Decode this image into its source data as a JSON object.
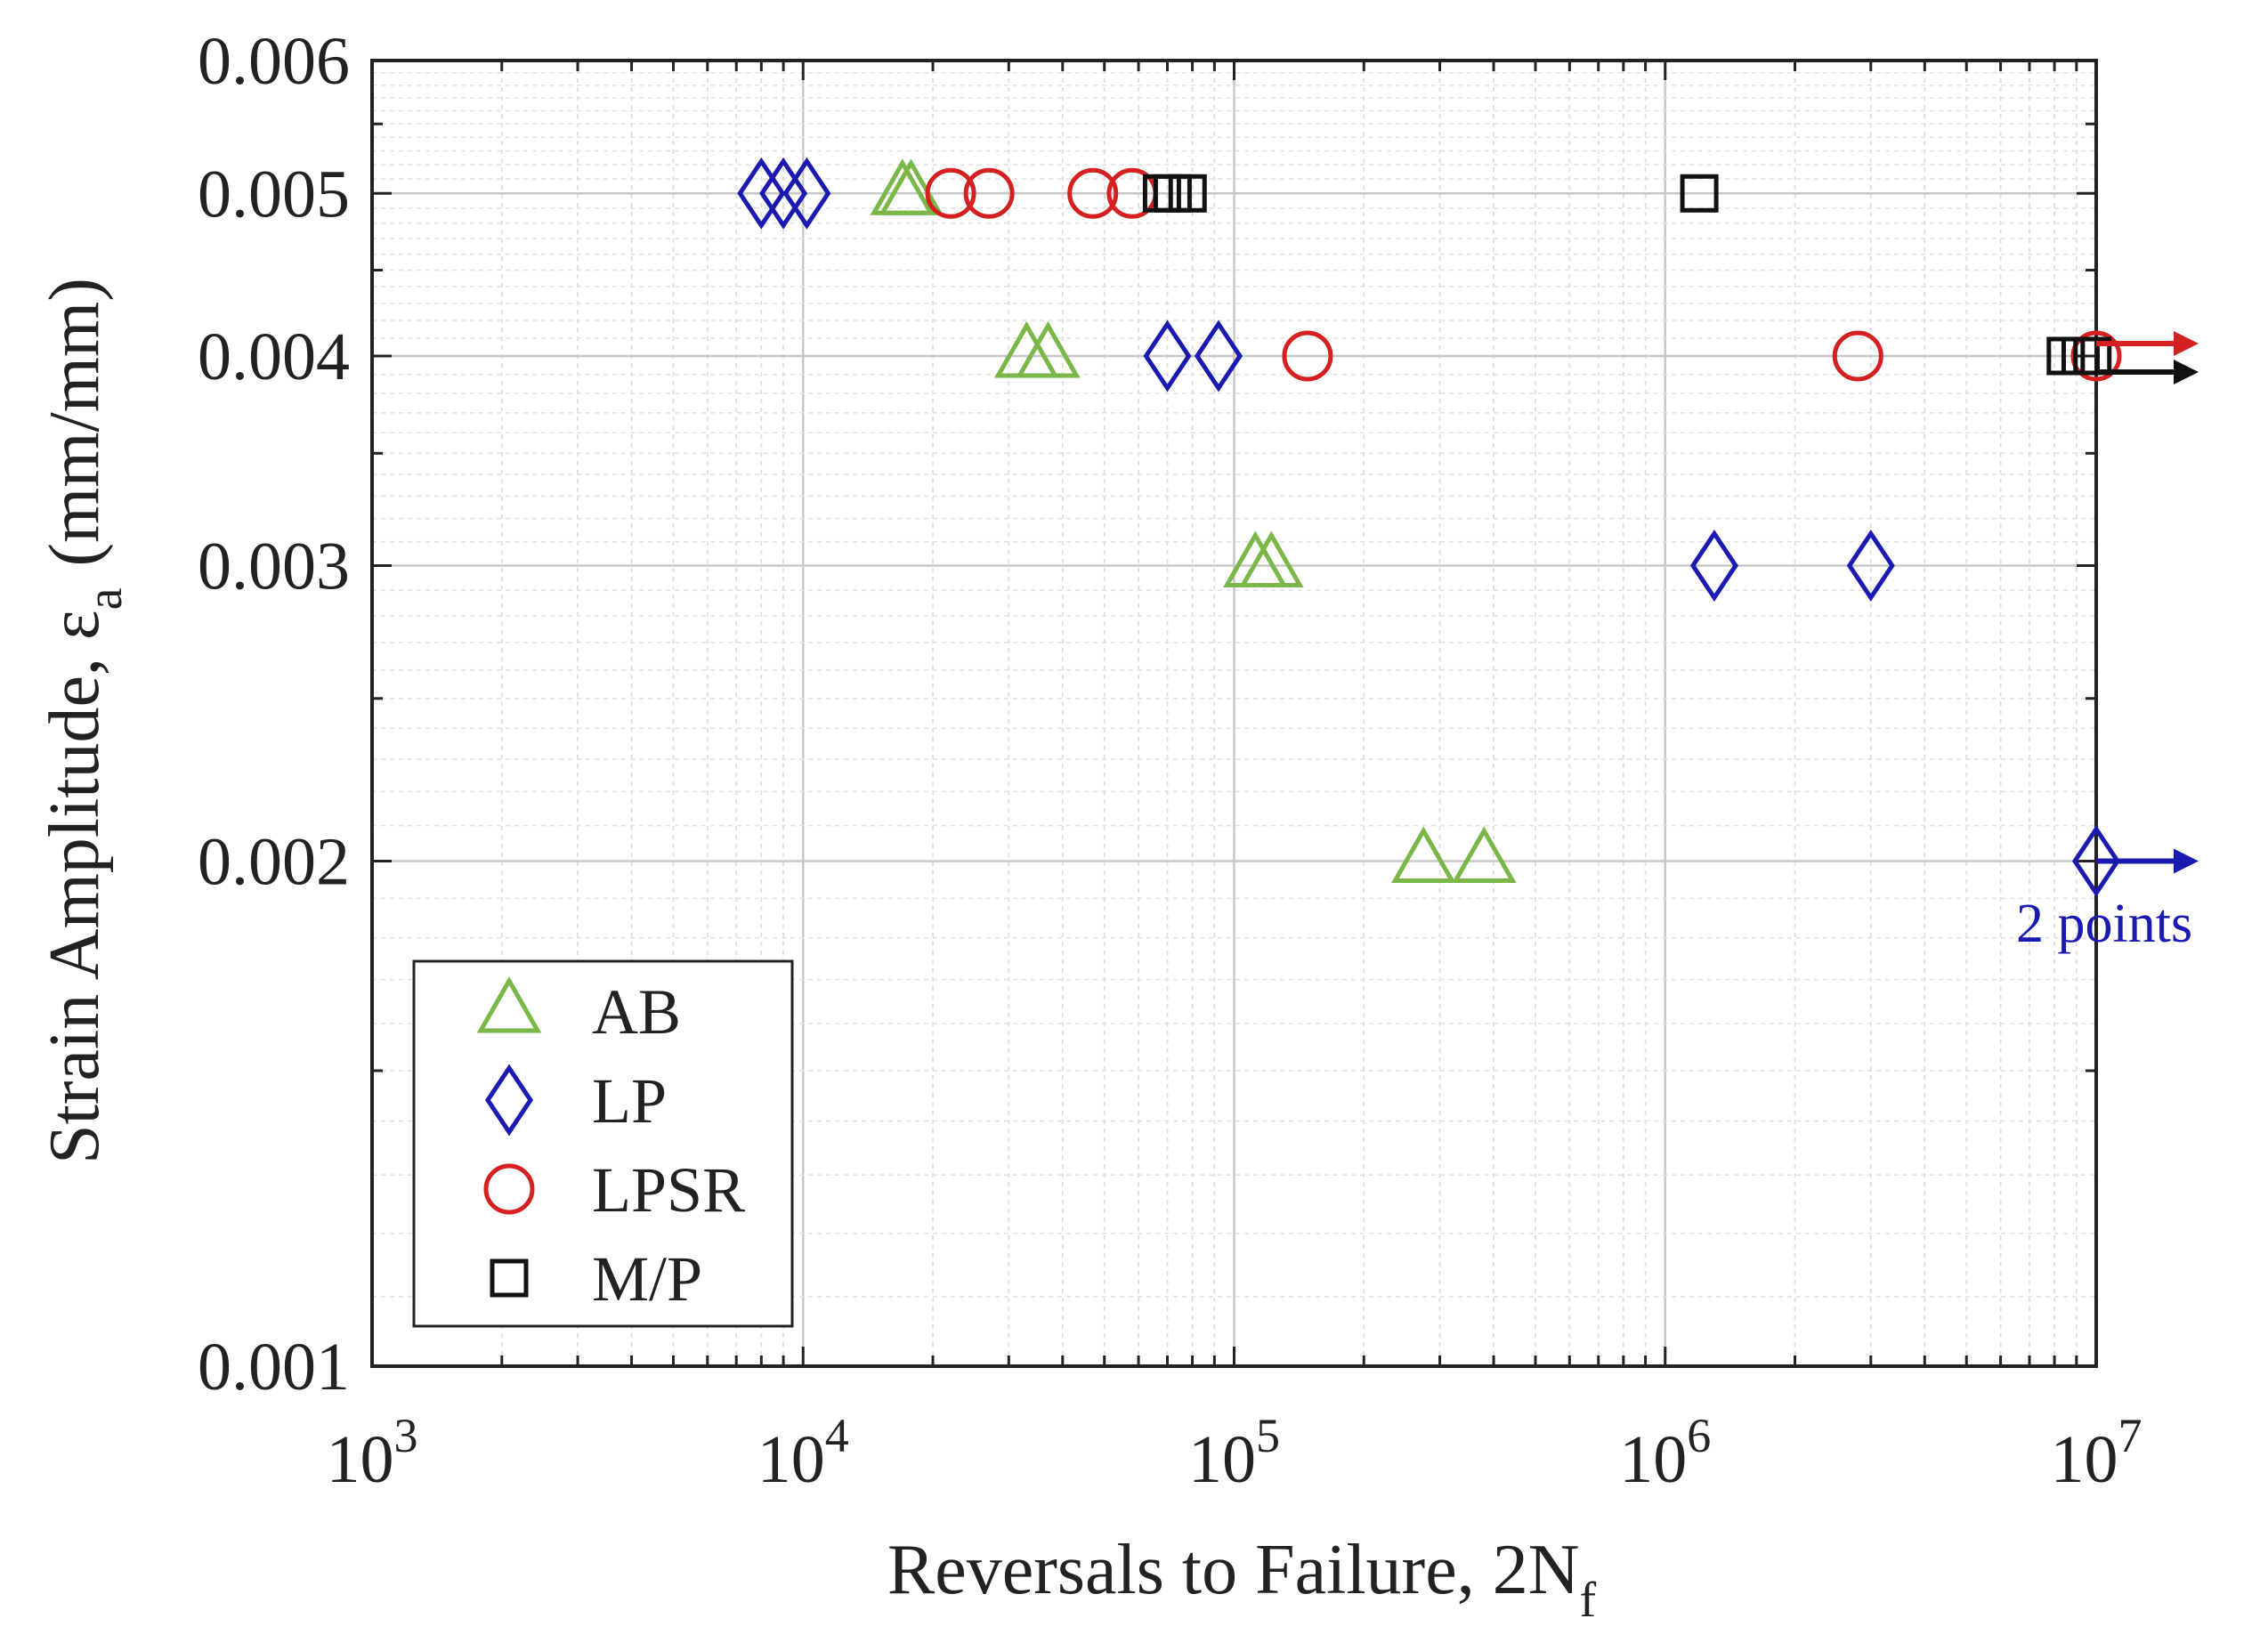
{
  "chart_data": {
    "type": "scatter",
    "x_scale": "log",
    "y_scale": "log",
    "xlim": [
      1000,
      10000000
    ],
    "ylim": [
      0.001,
      0.006
    ],
    "grid": true,
    "legend_position": "bottom-left",
    "xlabel": {
      "main": "Reversals to Failure, 2N",
      "sub": "f"
    },
    "ylabel": {
      "main": "Strain Amplitude, ε",
      "sub": "a",
      "unit": "(mm/mm)"
    },
    "x_tick_labels": [
      {
        "value": 1000,
        "base": "10",
        "exp": "3"
      },
      {
        "value": 10000,
        "base": "10",
        "exp": "4"
      },
      {
        "value": 100000,
        "base": "10",
        "exp": "5"
      },
      {
        "value": 1000000,
        "base": "10",
        "exp": "6"
      },
      {
        "value": 10000000,
        "base": "10",
        "exp": "7"
      }
    ],
    "y_tick_labels": [
      {
        "value": 0.006,
        "label": "0.006"
      },
      {
        "value": 0.005,
        "label": "0.005"
      },
      {
        "value": 0.004,
        "label": "0.004"
      },
      {
        "value": 0.003,
        "label": "0.003"
      },
      {
        "value": 0.002,
        "label": "0.002"
      },
      {
        "value": 0.001,
        "label": "0.001"
      }
    ],
    "series": [
      {
        "name": "AB",
        "marker": "triangle",
        "color": "#7ab648",
        "points": [
          [
            17000,
            0.005
          ],
          [
            17800,
            0.005
          ],
          [
            33000,
            0.004
          ],
          [
            37000,
            0.004
          ],
          [
            112000,
            0.003
          ],
          [
            122000,
            0.003
          ],
          [
            275000,
            0.002
          ],
          [
            380000,
            0.002
          ]
        ]
      },
      {
        "name": "LP",
        "marker": "diamond",
        "color": "#1a1ab0",
        "points": [
          [
            8000,
            0.005
          ],
          [
            9000,
            0.005
          ],
          [
            10200,
            0.005
          ],
          [
            70000,
            0.004
          ],
          [
            92000,
            0.004
          ],
          [
            1300000,
            0.003
          ],
          [
            3000000,
            0.003
          ],
          [
            10000000,
            0.002
          ]
        ]
      },
      {
        "name": "LPSR",
        "marker": "circle",
        "color": "#d42020",
        "points": [
          [
            22000,
            0.005
          ],
          [
            27000,
            0.005
          ],
          [
            47000,
            0.005
          ],
          [
            58000,
            0.005
          ],
          [
            148000,
            0.004
          ],
          [
            2800000,
            0.004
          ],
          [
            10000000,
            0.004
          ]
        ]
      },
      {
        "name": "M/P",
        "marker": "square",
        "color": "#111111",
        "points": [
          [
            68000,
            0.005
          ],
          [
            72000,
            0.005
          ],
          [
            78000,
            0.005
          ],
          [
            1200000,
            0.005
          ],
          [
            8500000,
            0.004
          ],
          [
            9200000,
            0.004
          ],
          [
            9800000,
            0.004
          ]
        ]
      }
    ],
    "runout_arrows": [
      {
        "series": "LPSR",
        "color": "#d42020",
        "x": 10000000,
        "y": 0.004,
        "offset": "above"
      },
      {
        "series": "M/P",
        "color": "#111111",
        "x": 10000000,
        "y": 0.004,
        "offset": "below"
      },
      {
        "series": "LP",
        "color": "#1a1ab0",
        "x": 10000000,
        "y": 0.002,
        "offset": "none"
      }
    ],
    "annotations": [
      {
        "text": "2 points",
        "color": "#1a1ab0",
        "near": "LP runout at 0.002"
      }
    ]
  }
}
